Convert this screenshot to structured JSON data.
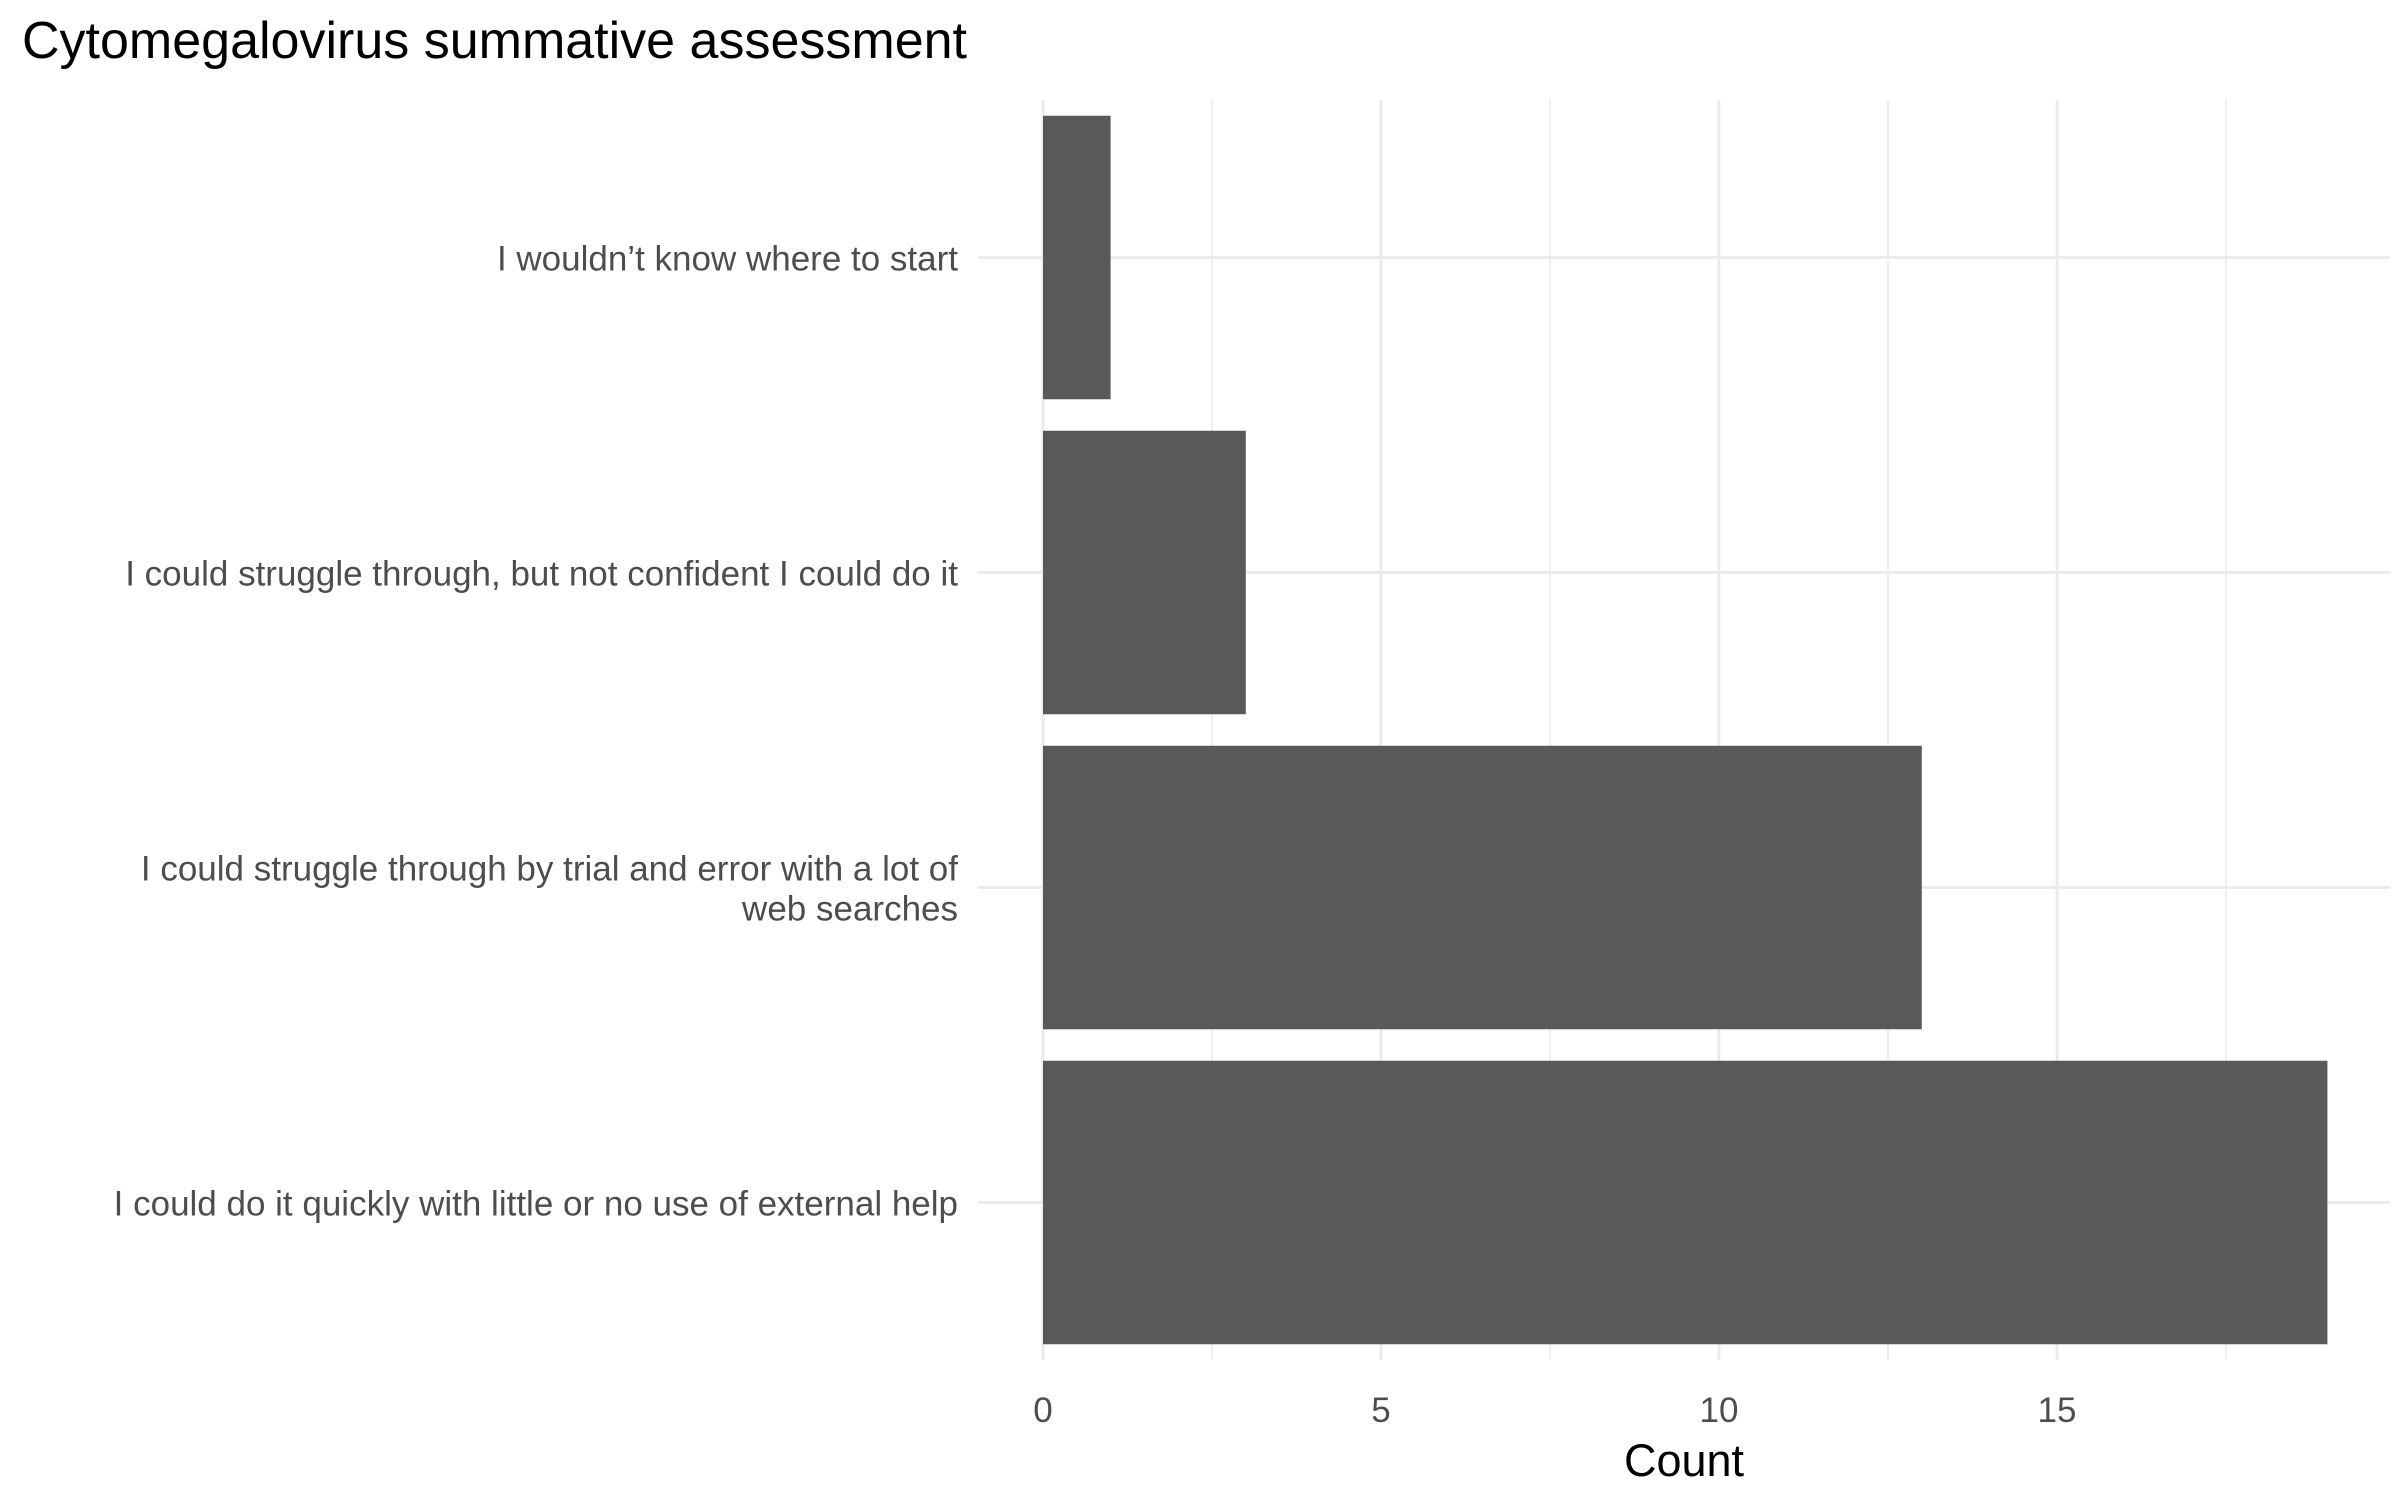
{
  "chart_data": {
    "type": "bar",
    "orientation": "horizontal",
    "title": "Cytomegalovirus summative assessment",
    "xlabel": "Count",
    "ylabel": "",
    "categories": [
      "I wouldn’t know where to start",
      "I could struggle through, but not confident I could do it",
      "I could struggle through by trial and error with a lot of web searches",
      "I could do it quickly with little or no use of external help"
    ],
    "category_lines": [
      [
        "I wouldn’t know where to start"
      ],
      [
        "I could struggle through, but not confident I could do it"
      ],
      [
        "I could struggle through by trial and error with a lot of",
        "web searches"
      ],
      [
        "I could do it quickly with little or no use of external help"
      ]
    ],
    "values": [
      1,
      3,
      13,
      19
    ],
    "xlim": [
      0,
      20
    ],
    "xticks": [
      0,
      5,
      10,
      15
    ],
    "grid": true,
    "legend": "none",
    "bar_color": "#595959",
    "grid_color": "#ebebeb"
  }
}
